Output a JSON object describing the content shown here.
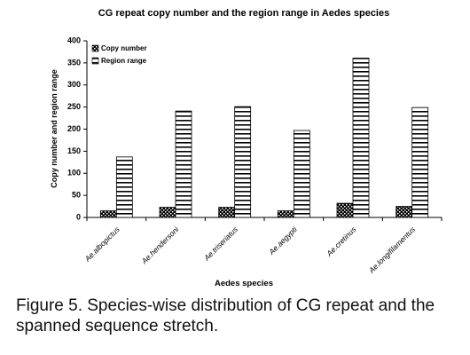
{
  "chart_data": {
    "type": "bar",
    "title": "CG repeat copy number and the region range in Aedes species",
    "x_label": "Aedes species",
    "y_label": "Copy number and region range",
    "categories": [
      "Ae.albopictus",
      "Ae.hendersoni",
      "Ae.triseriatus",
      "Ae.aegypti",
      "Ae.cretinus",
      "Ae.longifilamentus"
    ],
    "series": [
      {
        "name": "Copy number",
        "color": "#000000",
        "pattern": "dots",
        "values": [
          15,
          23,
          23,
          15,
          32,
          25
        ]
      },
      {
        "name": "Region range",
        "color": "#000000",
        "pattern": "hlines",
        "values": [
          137,
          241,
          251,
          197,
          361,
          249
        ]
      }
    ],
    "ylim": [
      0,
      400
    ],
    "yticks": [
      0,
      50,
      100,
      150,
      200,
      250,
      300,
      350,
      400
    ],
    "grid": false,
    "legend": "top-left"
  },
  "caption": "Figure 5. Species-wise distribution of CG repeat and the spanned sequence stretch."
}
